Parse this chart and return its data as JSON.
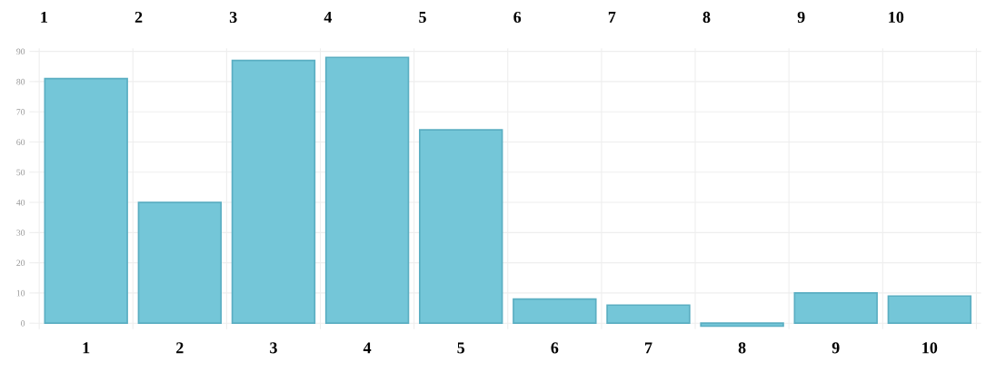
{
  "chart_data": {
    "type": "bar",
    "categories": [
      "1",
      "2",
      "3",
      "4",
      "5",
      "6",
      "7",
      "8",
      "9",
      "10"
    ],
    "values": [
      81,
      40,
      87,
      88,
      64,
      8,
      6,
      -1,
      10,
      9
    ],
    "color": "#74c6d8",
    "ylim": [
      -2,
      91
    ],
    "yticks": [
      0,
      10,
      20,
      30,
      40,
      50,
      60,
      70,
      80,
      90
    ],
    "grid": true,
    "annotations": [
      "1",
      "2",
      "3",
      "4",
      "5",
      "6",
      "7",
      "8",
      "9",
      "10"
    ]
  }
}
